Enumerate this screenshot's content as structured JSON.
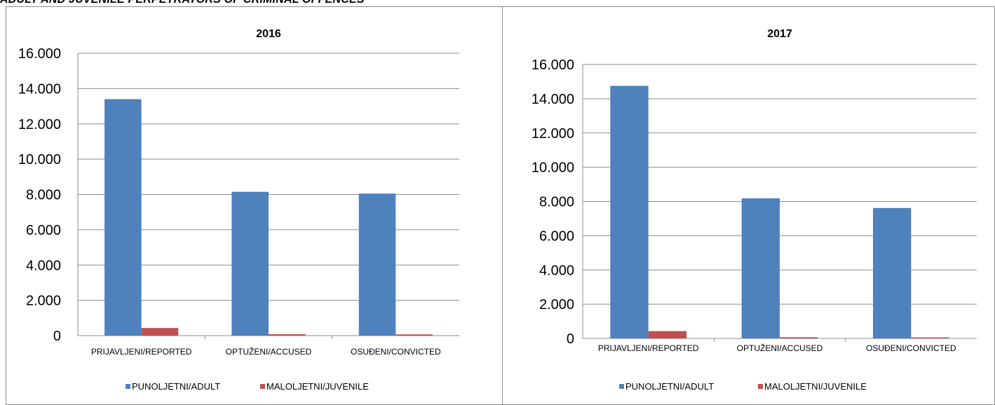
{
  "header": {
    "text": "ADULT AND JUVENILE PERPETRATORS OF CRIMINAL OFFENCES"
  },
  "colors": {
    "adult": "#4f81bd",
    "juvenile": "#c0504d"
  },
  "chart_data": [
    {
      "type": "bar",
      "title": "2016",
      "categories": [
        "PRIJAVLJENI/REPORTED",
        "OPTUŽENI/ACCUSED",
        "OSUĐENI/CONVICTED"
      ],
      "series": [
        {
          "name": "PUNOLJETNI/ADULT",
          "values": [
            13400,
            8150,
            8050
          ]
        },
        {
          "name": "MALOLJETNI/JUVENILE",
          "values": [
            430,
            80,
            70
          ]
        }
      ],
      "ylim": [
        0,
        16000
      ],
      "yticks": [
        0,
        2000,
        4000,
        6000,
        8000,
        10000,
        12000,
        14000,
        16000
      ],
      "ytick_labels": [
        "0",
        "2.000",
        "4.000",
        "6.000",
        "8.000",
        "10.000",
        "12.000",
        "14.000",
        "16.000"
      ],
      "grid": true,
      "legend": "bottom"
    },
    {
      "type": "bar",
      "title": "2017",
      "categories": [
        "PRIJAVLJENI/REPORTED",
        "OPTUŽENI/ACCUSED",
        "OSUĐENI/CONVICTED"
      ],
      "series": [
        {
          "name": "PUNOLJETNI/ADULT",
          "values": [
            14750,
            8180,
            7620
          ]
        },
        {
          "name": "MALOLJETNI/JUVENILE",
          "values": [
            430,
            70,
            60
          ]
        }
      ],
      "ylim": [
        0,
        16000
      ],
      "yticks": [
        0,
        2000,
        4000,
        6000,
        8000,
        10000,
        12000,
        14000,
        16000
      ],
      "ytick_labels": [
        "0",
        "2.000",
        "4.000",
        "6.000",
        "8.000",
        "10.000",
        "12.000",
        "14.000",
        "16.000"
      ],
      "grid": true,
      "legend": "bottom"
    }
  ]
}
